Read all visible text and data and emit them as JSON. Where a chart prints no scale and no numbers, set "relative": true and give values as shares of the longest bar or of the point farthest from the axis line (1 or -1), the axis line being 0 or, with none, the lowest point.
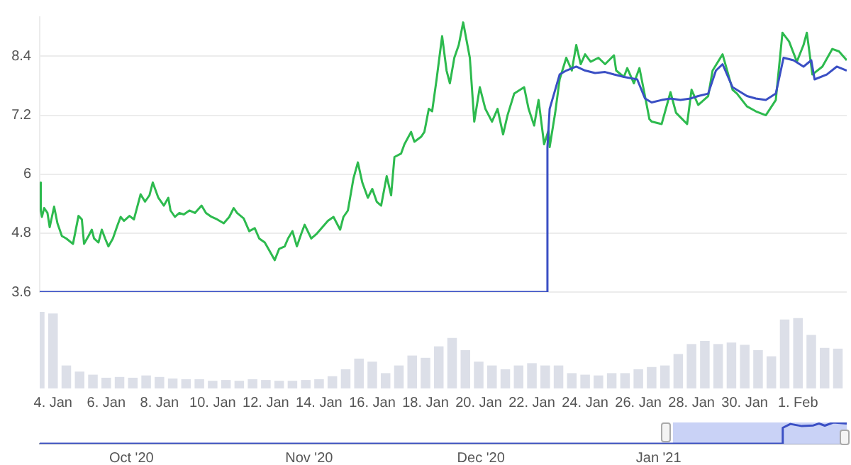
{
  "chart_data": [
    {
      "type": "line",
      "xlim": [
        "2021-01-03T12:00",
        "2021-02-02T20:00"
      ],
      "ylim": [
        3.6,
        9.2
      ],
      "yticks": [
        3.6,
        4.8,
        6,
        7.2,
        8.4
      ],
      "grid": "y",
      "legend": false,
      "marker": "none",
      "tick_labels": "y",
      "series": [
        {
          "color": "#2dba4e",
          "x": [
            "2021-01-03T12:00",
            "2021-01-03T13:00",
            "2021-01-03T14:00",
            "2021-01-03T16:00",
            "2021-01-03T19:00",
            "2021-01-03T21:00",
            "2021-01-04T01:00",
            "2021-01-04T04:00",
            "2021-01-04T08:00",
            "2021-01-04T12:00",
            "2021-01-04T18:00",
            "2021-01-04T23:00",
            "2021-01-05T02:00",
            "2021-01-05T04:00",
            "2021-01-05T08:00",
            "2021-01-05T11:00",
            "2021-01-05T13:00",
            "2021-01-05T17:00",
            "2021-01-05T20:00",
            "2021-01-05T23:00",
            "2021-01-06T02:00",
            "2021-01-06T06:00",
            "2021-01-06T10:00",
            "2021-01-06T13:00",
            "2021-01-06T16:00",
            "2021-01-06T21:00",
            "2021-01-07T01:00",
            "2021-01-07T07:00",
            "2021-01-07T11:00",
            "2021-01-07T15:00",
            "2021-01-07T18:00",
            "2021-01-07T23:00",
            "2021-01-08T04:00",
            "2021-01-08T08:00",
            "2021-01-08T10:00",
            "2021-01-08T14:00",
            "2021-01-08T18:00",
            "2021-01-08T22:00",
            "2021-01-09T03:00",
            "2021-01-09T08:00",
            "2021-01-09T14:00",
            "2021-01-09T18:00",
            "2021-01-09T23:00",
            "2021-01-10T04:00",
            "2021-01-10T10:00",
            "2021-01-10T15:00",
            "2021-01-10T19:00",
            "2021-01-10T22:00",
            "2021-01-11T04:00",
            "2021-01-11T09:00",
            "2021-01-11T14:00",
            "2021-01-11T18:00",
            "2021-01-11T23:00",
            "2021-01-12T03:00",
            "2021-01-12T08:00",
            "2021-01-12T12:00",
            "2021-01-12T17:00",
            "2021-01-12T20:00",
            "2021-01-13T00:00",
            "2021-01-13T04:00",
            "2021-01-13T08:00",
            "2021-01-13T11:00",
            "2021-01-13T17:00",
            "2021-01-13T22:00",
            "2021-01-14T03:00",
            "2021-01-14T08:00",
            "2021-01-14T13:00",
            "2021-01-14T19:00",
            "2021-01-14T22:00",
            "2021-01-15T02:00",
            "2021-01-15T07:00",
            "2021-01-15T11:00",
            "2021-01-15T15:00",
            "2021-01-15T20:00",
            "2021-01-16T00:00",
            "2021-01-16T04:00",
            "2021-01-16T08:00",
            "2021-01-16T13:00",
            "2021-01-16T17:00",
            "2021-01-16T20:00",
            "2021-01-17T02:00",
            "2021-01-17T05:00",
            "2021-01-17T11:00",
            "2021-01-17T14:00",
            "2021-01-17T20:00",
            "2021-01-17T23:00",
            "2021-01-18T03:00",
            "2021-01-18T06:00",
            "2021-01-18T10:00",
            "2021-01-18T15:00",
            "2021-01-18T19:00",
            "2021-01-18T22:00",
            "2021-01-19T02:00",
            "2021-01-19T06:00",
            "2021-01-19T10:00",
            "2021-01-19T16:00",
            "2021-01-19T20:00",
            "2021-01-20T01:00",
            "2021-01-20T06:00",
            "2021-01-20T12:00",
            "2021-01-20T17:00",
            "2021-01-20T22:00",
            "2021-01-21T02:00",
            "2021-01-21T08:00",
            "2021-01-21T17:00",
            "2021-01-21T21:00",
            "2021-01-22T02:00",
            "2021-01-22T06:00",
            "2021-01-22T11:00",
            "2021-01-22T15:00",
            "2021-01-22T16:00",
            "2021-01-22T21:00",
            "2021-01-23T01:00",
            "2021-01-23T07:00",
            "2021-01-23T12:00",
            "2021-01-23T16:00",
            "2021-01-23T20:00",
            "2021-01-24T00:00",
            "2021-01-24T05:00",
            "2021-01-24T12:00",
            "2021-01-24T18:00",
            "2021-01-25T02:00",
            "2021-01-25T04:00",
            "2021-01-25T11:00",
            "2021-01-25T14:00",
            "2021-01-25T20:00",
            "2021-01-26T01:00",
            "2021-01-26T06:00",
            "2021-01-26T10:00",
            "2021-01-26T12:00",
            "2021-01-26T21:00",
            "2021-01-27T05:00",
            "2021-01-27T10:00",
            "2021-01-27T20:00",
            "2021-01-28T00:00",
            "2021-01-28T06:00",
            "2021-01-28T15:00",
            "2021-01-28T19:00",
            "2021-01-29T04:00",
            "2021-01-29T13:00",
            "2021-01-29T17:00",
            "2021-01-30T02:00",
            "2021-01-30T10:00",
            "2021-01-30T19:00",
            "2021-01-31T04:00",
            "2021-01-31T10:00",
            "2021-01-31T16:00",
            "2021-01-31T23:00",
            "2021-02-01T05:00",
            "2021-02-01T08:00",
            "2021-02-01T13:00",
            "2021-02-01T22:00",
            "2021-02-02T07:00",
            "2021-02-02T13:00",
            "2021-02-02T20:00"
          ],
          "values": [
            5.83,
            5.26,
            5.13,
            5.31,
            5.21,
            4.92,
            5.34,
            5.0,
            4.74,
            4.69,
            4.58,
            5.15,
            5.08,
            4.58,
            4.74,
            4.87,
            4.69,
            4.61,
            4.87,
            4.69,
            4.53,
            4.69,
            4.95,
            5.13,
            5.05,
            5.15,
            5.08,
            5.59,
            5.44,
            5.57,
            5.83,
            5.52,
            5.36,
            5.52,
            5.26,
            5.13,
            5.21,
            5.18,
            5.26,
            5.21,
            5.36,
            5.21,
            5.13,
            5.08,
            5.0,
            5.13,
            5.31,
            5.21,
            5.1,
            4.84,
            4.9,
            4.69,
            4.61,
            4.45,
            4.25,
            4.48,
            4.53,
            4.69,
            4.84,
            4.53,
            4.79,
            4.97,
            4.69,
            4.79,
            4.92,
            5.05,
            5.13,
            4.87,
            5.13,
            5.26,
            5.91,
            6.24,
            5.83,
            5.52,
            5.7,
            5.44,
            5.36,
            5.96,
            5.57,
            6.35,
            6.42,
            6.61,
            6.86,
            6.66,
            6.76,
            6.86,
            7.33,
            7.28,
            7.93,
            8.81,
            8.11,
            7.85,
            8.37,
            8.63,
            9.09,
            8.37,
            7.07,
            7.77,
            7.33,
            7.07,
            7.33,
            6.81,
            7.2,
            7.64,
            7.77,
            7.33,
            6.99,
            7.51,
            6.61,
            6.89,
            6.55,
            7.25,
            7.93,
            8.37,
            8.11,
            8.63,
            8.24,
            8.44,
            8.29,
            8.37,
            8.24,
            8.42,
            8.11,
            7.98,
            8.16,
            7.85,
            8.16,
            7.59,
            7.12,
            7.07,
            7.02,
            7.67,
            7.25,
            7.02,
            7.72,
            7.41,
            7.59,
            8.11,
            8.44,
            7.72,
            7.64,
            7.38,
            7.28,
            7.2,
            7.51,
            8.88,
            8.7,
            8.29,
            8.63,
            8.88,
            8.03,
            8.19,
            8.55,
            8.5,
            8.32
          ]
        },
        {
          "color": "#3a4fc4",
          "x": [
            "2021-01-03T12:00",
            "2021-01-22T13:00",
            "2021-01-22T14:00",
            "2021-01-22T16:00",
            "2021-01-23T01:00",
            "2021-01-23T07:00",
            "2021-01-23T16:00",
            "2021-01-24T00:00",
            "2021-01-24T09:00",
            "2021-01-24T18:00",
            "2021-01-25T02:00",
            "2021-01-25T11:00",
            "2021-01-25T23:00",
            "2021-01-26T06:00",
            "2021-01-26T12:00",
            "2021-01-26T21:00",
            "2021-01-27T05:00",
            "2021-01-27T14:00",
            "2021-01-27T23:00",
            "2021-01-28T06:00",
            "2021-01-28T15:00",
            "2021-01-28T22:00",
            "2021-01-29T04:00",
            "2021-01-29T13:00",
            "2021-01-30T02:00",
            "2021-01-30T10:00",
            "2021-01-30T19:00",
            "2021-01-31T04:00",
            "2021-01-31T11:00",
            "2021-01-31T20:00",
            "2021-02-01T05:00",
            "2021-02-01T12:00",
            "2021-02-01T15:00",
            "2021-02-02T02:00",
            "2021-02-02T11:00",
            "2021-02-02T20:00"
          ],
          "values": [
            3.6,
            3.6,
            6.55,
            7.33,
            8.03,
            8.11,
            8.19,
            8.11,
            8.06,
            8.08,
            8.03,
            7.98,
            7.93,
            7.54,
            7.46,
            7.51,
            7.54,
            7.51,
            7.54,
            7.59,
            7.64,
            8.11,
            8.24,
            7.77,
            7.59,
            7.54,
            7.51,
            7.64,
            8.37,
            8.32,
            8.19,
            8.32,
            7.93,
            8.03,
            8.19,
            8.11
          ]
        }
      ]
    },
    {
      "type": "bar",
      "relative": true,
      "legend": false,
      "tick_labels": "x",
      "color": "#dcdfe8",
      "xlim": [
        "2021-01-03T12:00",
        "2021-02-02T20:00"
      ],
      "xticks": [
        {
          "value": "2021-01-04",
          "label": "4. Jan"
        },
        {
          "value": "2021-01-06",
          "label": "6. Jan"
        },
        {
          "value": "2021-01-08",
          "label": "8. Jan"
        },
        {
          "value": "2021-01-10",
          "label": "10. Jan"
        },
        {
          "value": "2021-01-12",
          "label": "12. Jan"
        },
        {
          "value": "2021-01-14",
          "label": "14. Jan"
        },
        {
          "value": "2021-01-16",
          "label": "16. Jan"
        },
        {
          "value": "2021-01-18",
          "label": "18. Jan"
        },
        {
          "value": "2021-01-20",
          "label": "20. Jan"
        },
        {
          "value": "2021-01-22",
          "label": "22. Jan"
        },
        {
          "value": "2021-01-24",
          "label": "24. Jan"
        },
        {
          "value": "2021-01-26",
          "label": "26. Jan"
        },
        {
          "value": "2021-01-28",
          "label": "28. Jan"
        },
        {
          "value": "2021-01-30",
          "label": "30. Jan"
        },
        {
          "value": "2021-02-01",
          "label": "1. Feb"
        }
      ],
      "x": [
        "2021-01-03T12:00",
        "2021-01-04",
        "2021-01-04T12:00",
        "2021-01-05",
        "2021-01-05T12:00",
        "2021-01-06",
        "2021-01-06T12:00",
        "2021-01-07",
        "2021-01-07T12:00",
        "2021-01-08",
        "2021-01-08T12:00",
        "2021-01-09",
        "2021-01-09T12:00",
        "2021-01-10",
        "2021-01-10T12:00",
        "2021-01-11",
        "2021-01-11T12:00",
        "2021-01-12",
        "2021-01-12T12:00",
        "2021-01-13",
        "2021-01-13T12:00",
        "2021-01-14",
        "2021-01-14T12:00",
        "2021-01-15",
        "2021-01-15T12:00",
        "2021-01-16",
        "2021-01-16T12:00",
        "2021-01-17",
        "2021-01-17T12:00",
        "2021-01-18",
        "2021-01-18T12:00",
        "2021-01-19",
        "2021-01-19T12:00",
        "2021-01-20",
        "2021-01-20T12:00",
        "2021-01-21",
        "2021-01-21T12:00",
        "2021-01-22",
        "2021-01-22T12:00",
        "2021-01-23",
        "2021-01-23T12:00",
        "2021-01-24",
        "2021-01-24T12:00",
        "2021-01-25",
        "2021-01-25T12:00",
        "2021-01-26",
        "2021-01-26T12:00",
        "2021-01-27",
        "2021-01-27T12:00",
        "2021-01-28",
        "2021-01-28T12:00",
        "2021-01-29",
        "2021-01-29T12:00",
        "2021-01-30",
        "2021-01-30T12:00",
        "2021-01-31",
        "2021-01-31T12:00",
        "2021-02-01",
        "2021-02-01T12:00",
        "2021-02-02",
        "2021-02-02T12:00"
      ],
      "values": [
        1,
        0.98,
        0.3,
        0.22,
        0.18,
        0.14,
        0.15,
        0.14,
        0.17,
        0.15,
        0.13,
        0.12,
        0.12,
        0.1,
        0.11,
        0.1,
        0.12,
        0.11,
        0.1,
        0.1,
        0.11,
        0.12,
        0.16,
        0.25,
        0.39,
        0.35,
        0.2,
        0.3,
        0.43,
        0.4,
        0.55,
        0.66,
        0.5,
        0.35,
        0.3,
        0.25,
        0.3,
        0.33,
        0.3,
        0.3,
        0.2,
        0.18,
        0.17,
        0.2,
        0.2,
        0.25,
        0.28,
        0.3,
        0.45,
        0.58,
        0.62,
        0.58,
        0.6,
        0.57,
        0.5,
        0.42,
        0.9,
        0.92,
        0.7,
        0.53,
        0.52
      ]
    },
    {
      "type": "line",
      "relative": true,
      "legend": false,
      "tick_labels": "x",
      "marker": "none",
      "color": "#3a4fc4",
      "xlim": [
        "2020-09-15",
        "2021-02-02T20:00"
      ],
      "xticks": [
        {
          "value": "2020-10-01",
          "label": "Oct '20"
        },
        {
          "value": "2020-11-01",
          "label": "Nov '20"
        },
        {
          "value": "2020-12-01",
          "label": "Dec '20"
        },
        {
          "value": "2021-01-01",
          "label": "Jan '21"
        }
      ],
      "bands": [
        {
          "axis": "x",
          "from": "2021-01-03T12:00",
          "to": "2021-02-02T20:00",
          "color": "#c9d2f6"
        }
      ],
      "x": [
        "2020-09-15",
        "2021-01-22T13:00",
        "2021-01-22T16:00",
        "2021-01-24",
        "2021-01-26",
        "2021-01-28",
        "2021-01-29",
        "2021-01-30",
        "2021-01-31T12:00",
        "2021-02-02T20:00"
      ],
      "values": [
        0,
        0,
        0.75,
        0.93,
        0.83,
        0.86,
        0.95,
        0.85,
        1,
        0.95
      ]
    }
  ]
}
